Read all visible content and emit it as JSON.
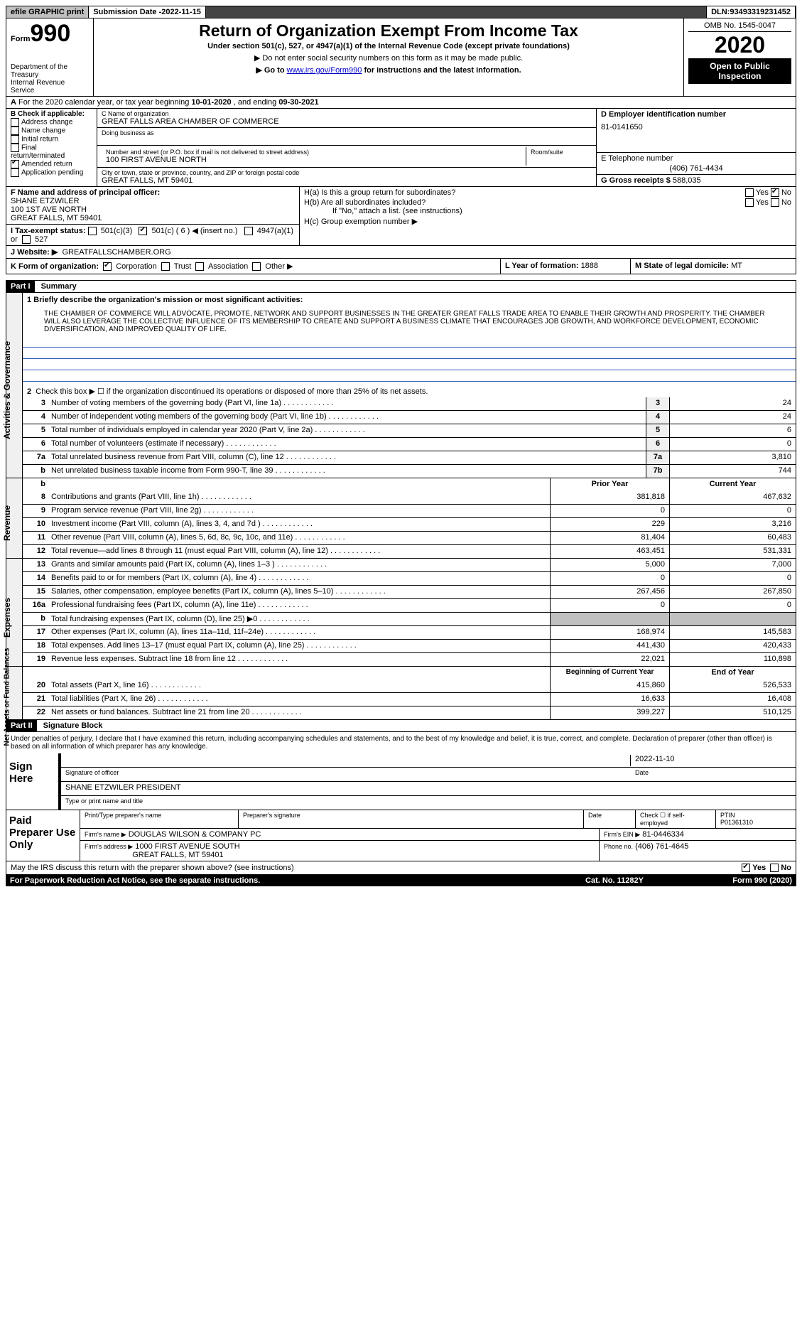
{
  "topbar": {
    "efile": "efile GRAPHIC print",
    "subdate_lbl": "Submission Date - ",
    "subdate": "2022-11-15",
    "dln_lbl": "DLN: ",
    "dln": "93493319231452"
  },
  "header": {
    "form_lbl": "Form",
    "form_num": "990",
    "dept": "Department of the Treasury\nInternal Revenue Service",
    "title": "Return of Organization Exempt From Income Tax",
    "sub1": "Under section 501(c), 527, or 4947(a)(1) of the Internal Revenue Code (except private foundations)",
    "sub2": "▶ Do not enter social security numbers on this form as it may be made public.",
    "sub3_pre": "▶ Go to ",
    "sub3_link": "www.irs.gov/Form990",
    "sub3_post": " for instructions and the latest information.",
    "omb": "OMB No. 1545-0047",
    "year": "2020",
    "open": "Open to Public Inspection"
  },
  "lineA": {
    "pre": "For the 2020 calendar year, or tax year beginning ",
    "begin": "10-01-2020",
    "mid": " , and ending ",
    "end": "09-30-2021",
    "lbl": "A"
  },
  "sectionB": {
    "lbl": "B Check if applicable:",
    "items": [
      "Address change",
      "Name change",
      "Initial return",
      "Final return/terminated",
      "Amended return",
      "Application pending"
    ],
    "checked_idx": 4
  },
  "sectionC": {
    "name_lbl": "C Name of organization",
    "name": "GREAT FALLS AREA CHAMBER OF COMMERCE",
    "dba_lbl": "Doing business as",
    "addr_lbl": "Number and street (or P.O. box if mail is not delivered to street address)",
    "addr": "100 FIRST AVENUE NORTH",
    "room_lbl": "Room/suite",
    "city_lbl": "City or town, state or province, country, and ZIP or foreign postal code",
    "city": "GREAT FALLS, MT  59401"
  },
  "sectionD": {
    "lbl": "D Employer identification number",
    "val": "81-0141650"
  },
  "sectionE": {
    "lbl": "E Telephone number",
    "val": "(406) 761-4434"
  },
  "sectionG": {
    "lbl": "G Gross receipts $ ",
    "val": "588,035"
  },
  "sectionF": {
    "lbl": "F  Name and address of principal officer:",
    "name": "SHANE ETZWILER",
    "a1": "100 1ST AVE NORTH",
    "a2": "GREAT FALLS, MT  59401"
  },
  "sectionI": {
    "lbl": "I  Tax-exempt status:",
    "o1": "501(c)(3)",
    "o2": "501(c) ( 6 ) ◀ (insert no.)",
    "o3": "4947(a)(1) or",
    "o4": "527",
    "checked": 1
  },
  "sectionJ": {
    "lbl": "J  Website: ▶",
    "val": "GREATFALLSCHAMBER.ORG"
  },
  "sectionH": {
    "ha_lbl": "H(a)  Is this a group return for subordinates?",
    "ha_yes": "Yes",
    "ha_no": "No",
    "ha_checked": "no",
    "hb_lbl": "H(b)  Are all subordinates included?",
    "hb_yes": "Yes",
    "hb_no": "No",
    "hb_note": "If \"No,\" attach a list. (see instructions)",
    "hc_lbl": "H(c)  Group exemption number ▶"
  },
  "sectionK": {
    "lbl": "K Form of organization:",
    "opts": [
      "Corporation",
      "Trust",
      "Association",
      "Other ▶"
    ],
    "checked": 0,
    "l_lbl": "L Year of formation: ",
    "l_val": "1888",
    "m_lbl": "M State of legal domicile: ",
    "m_val": "MT"
  },
  "partI": {
    "hdr": "Part I",
    "title": "Summary"
  },
  "activities": {
    "vlabel": "Activities & Governance",
    "l1_lbl": "1   Briefly describe the organization's mission or most significant activities:",
    "l1_text": "THE CHAMBER OF COMMERCE WILL ADVOCATE, PROMOTE, NETWORK AND SUPPORT BUSINESSES IN THE GREATER GREAT FALLS TRADE AREA TO ENABLE THEIR GROWTH AND PROSPERITY. THE CHAMBER WILL ALSO LEVERAGE THE COLLECTIVE INFLUENCE OF ITS MEMBERSHIP TO CREATE AND SUPPORT A BUSINESS CLIMATE THAT ENCOURAGES JOB GROWTH, AND WORKFORCE DEVELOPMENT, ECONOMIC DIVERSIFICATION, AND IMPROVED QUALITY OF LIFE.",
    "l2_lbl": "Check this box ▶ ☐ if the organization discontinued its operations or disposed of more than 25% of its net assets.",
    "rows": [
      {
        "n": "3",
        "d": "Number of voting members of the governing body (Part VI, line 1a)",
        "box": "3",
        "v": "24"
      },
      {
        "n": "4",
        "d": "Number of independent voting members of the governing body (Part VI, line 1b)",
        "box": "4",
        "v": "24"
      },
      {
        "n": "5",
        "d": "Total number of individuals employed in calendar year 2020 (Part V, line 2a)",
        "box": "5",
        "v": "6"
      },
      {
        "n": "6",
        "d": "Total number of volunteers (estimate if necessary)",
        "box": "6",
        "v": "0"
      },
      {
        "n": "7a",
        "d": "Total unrelated business revenue from Part VIII, column (C), line 12",
        "box": "7a",
        "v": "3,810"
      },
      {
        "n": "b",
        "d": "Net unrelated business taxable income from Form 990-T, line 39",
        "box": "7b",
        "v": "744"
      }
    ]
  },
  "revenue": {
    "vlabel": "Revenue",
    "hdr_prior": "Prior Year",
    "hdr_curr": "Current Year",
    "rows": [
      {
        "n": "8",
        "d": "Contributions and grants (Part VIII, line 1h)",
        "p": "381,818",
        "c": "467,632"
      },
      {
        "n": "9",
        "d": "Program service revenue (Part VIII, line 2g)",
        "p": "0",
        "c": "0"
      },
      {
        "n": "10",
        "d": "Investment income (Part VIII, column (A), lines 3, 4, and 7d )",
        "p": "229",
        "c": "3,216"
      },
      {
        "n": "11",
        "d": "Other revenue (Part VIII, column (A), lines 5, 6d, 8c, 9c, 10c, and 11e)",
        "p": "81,404",
        "c": "60,483"
      },
      {
        "n": "12",
        "d": "Total revenue—add lines 8 through 11 (must equal Part VIII, column (A), line 12)",
        "p": "463,451",
        "c": "531,331"
      }
    ]
  },
  "expenses": {
    "vlabel": "Expenses",
    "rows": [
      {
        "n": "13",
        "d": "Grants and similar amounts paid (Part IX, column (A), lines 1–3 )",
        "p": "5,000",
        "c": "7,000"
      },
      {
        "n": "14",
        "d": "Benefits paid to or for members (Part IX, column (A), line 4)",
        "p": "0",
        "c": "0"
      },
      {
        "n": "15",
        "d": "Salaries, other compensation, employee benefits (Part IX, column (A), lines 5–10)",
        "p": "267,456",
        "c": "267,850"
      },
      {
        "n": "16a",
        "d": "Professional fundraising fees (Part IX, column (A), line 11e)",
        "p": "0",
        "c": "0"
      },
      {
        "n": "b",
        "d": "Total fundraising expenses (Part IX, column (D), line 25) ▶0",
        "p": "",
        "c": "",
        "grey": true
      },
      {
        "n": "17",
        "d": "Other expenses (Part IX, column (A), lines 11a–11d, 11f–24e)",
        "p": "168,974",
        "c": "145,583"
      },
      {
        "n": "18",
        "d": "Total expenses. Add lines 13–17 (must equal Part IX, column (A), line 25)",
        "p": "441,430",
        "c": "420,433"
      },
      {
        "n": "19",
        "d": "Revenue less expenses. Subtract line 18 from line 12",
        "p": "22,021",
        "c": "110,898"
      }
    ]
  },
  "netassets": {
    "vlabel": "Net Assets or Fund Balances",
    "hdr_beg": "Beginning of Current Year",
    "hdr_end": "End of Year",
    "rows": [
      {
        "n": "20",
        "d": "Total assets (Part X, line 16)",
        "p": "415,860",
        "c": "526,533"
      },
      {
        "n": "21",
        "d": "Total liabilities (Part X, line 26)",
        "p": "16,633",
        "c": "16,408"
      },
      {
        "n": "22",
        "d": "Net assets or fund balances. Subtract line 21 from line 20",
        "p": "399,227",
        "c": "510,125"
      }
    ]
  },
  "partII": {
    "hdr": "Part II",
    "title": "Signature Block"
  },
  "sig": {
    "decl": "Under penalties of perjury, I declare that I have examined this return, including accompanying schedules and statements, and to the best of my knowledge and belief, it is true, correct, and complete. Declaration of preparer (other than officer) is based on all information of which preparer has any knowledge.",
    "sign_here": "Sign Here",
    "date": "2022-11-10",
    "sig_lbl": "Signature of officer",
    "date_lbl": "Date",
    "name": "SHANE ETZWILER  PRESIDENT",
    "name_lbl": "Type or print name and title"
  },
  "paid": {
    "lbl": "Paid Preparer Use Only",
    "r1": {
      "c1": "Print/Type preparer's name",
      "c2": "Preparer's signature",
      "c3": "Date",
      "c4_lbl": "Check ☐ if self-employed",
      "c5_lbl": "PTIN",
      "c5": "P01361310"
    },
    "r2": {
      "lbl": "Firm's name    ▶",
      "val": "DOUGLAS WILSON & COMPANY PC",
      "ein_lbl": "Firm's EIN ▶",
      "ein": "81-0446334"
    },
    "r3": {
      "lbl": "Firm's address ▶",
      "a1": "1000 FIRST AVENUE SOUTH",
      "a2": "GREAT FALLS, MT  59401",
      "ph_lbl": "Phone no.",
      "ph": "(406) 761-4645"
    }
  },
  "discuss": {
    "q": "May the IRS discuss this return with the preparer shown above? (see instructions)",
    "yes": "Yes",
    "no": "No",
    "checked": "yes"
  },
  "footer": {
    "l": "For Paperwork Reduction Act Notice, see the separate instructions.",
    "m": "Cat. No. 11282Y",
    "r": "Form 990 (2020)"
  }
}
